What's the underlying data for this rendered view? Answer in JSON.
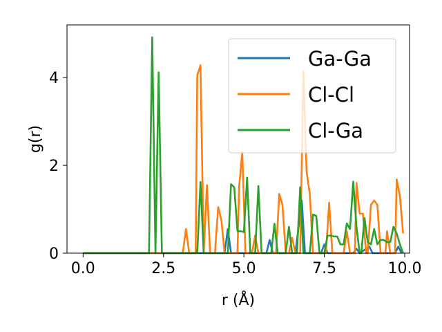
{
  "chart_data": {
    "type": "line",
    "xlabel": "r (Å)",
    "ylabel": "g(r)",
    "xlim": [
      -0.5,
      10.15
    ],
    "ylim": [
      0,
      5.2
    ],
    "xticks": [
      0.0,
      2.5,
      5.0,
      7.5,
      10.0
    ],
    "xtick_labels": [
      "0.0",
      "2.5",
      "5.0",
      "7.5",
      "10.0"
    ],
    "yticks": [
      0,
      2,
      4
    ],
    "ytick_labels": [
      "0",
      "2",
      "4"
    ],
    "grid": false,
    "legend_position": "top-right",
    "series": [
      {
        "name": "Ga-Ga",
        "color": "#1f77b4",
        "points": [
          [
            0,
            0
          ],
          [
            4.4,
            0
          ],
          [
            4.5,
            0.55
          ],
          [
            4.6,
            0
          ],
          [
            5.7,
            0
          ],
          [
            5.8,
            0.3
          ],
          [
            5.9,
            0
          ],
          [
            6.6,
            0
          ],
          [
            6.8,
            1.2
          ],
          [
            6.9,
            0
          ],
          [
            7.4,
            0
          ],
          [
            7.5,
            0.2
          ],
          [
            7.6,
            0
          ],
          [
            8.4,
            0
          ],
          [
            8.5,
            0.1
          ],
          [
            8.6,
            0
          ],
          [
            8.8,
            0.1
          ],
          [
            8.9,
            0.15
          ],
          [
            9.0,
            0
          ],
          [
            9.7,
            0
          ],
          [
            9.8,
            0.15
          ],
          [
            9.9,
            0
          ]
        ]
      },
      {
        "name": "Cl-Cl",
        "color": "#ff7f0e",
        "points": [
          [
            0,
            0
          ],
          [
            3.1,
            0
          ],
          [
            3.2,
            0.55
          ],
          [
            3.3,
            0
          ],
          [
            3.5,
            0
          ],
          [
            3.55,
            4.05
          ],
          [
            3.65,
            4.28
          ],
          [
            3.75,
            0
          ],
          [
            3.85,
            1.55
          ],
          [
            3.95,
            0
          ],
          [
            4.1,
            0
          ],
          [
            4.2,
            1.05
          ],
          [
            4.3,
            0.75
          ],
          [
            4.4,
            0
          ],
          [
            4.8,
            0
          ],
          [
            4.85,
            1.5
          ],
          [
            4.95,
            2.3
          ],
          [
            5.05,
            0
          ],
          [
            5.25,
            0
          ],
          [
            5.35,
            0.4
          ],
          [
            5.45,
            0
          ],
          [
            5.9,
            0
          ],
          [
            6.0,
            0
          ],
          [
            6.1,
            1.35
          ],
          [
            6.2,
            1.1
          ],
          [
            6.3,
            0
          ],
          [
            6.4,
            0
          ],
          [
            6.5,
            0.35
          ],
          [
            6.6,
            0
          ],
          [
            6.75,
            0
          ],
          [
            6.85,
            4.15
          ],
          [
            6.95,
            1.85
          ],
          [
            7.05,
            1.35
          ],
          [
            7.15,
            0
          ],
          [
            7.35,
            0
          ],
          [
            7.45,
            0
          ],
          [
            7.55,
            0
          ],
          [
            7.65,
            1.15
          ],
          [
            7.75,
            0
          ],
          [
            8.1,
            0
          ],
          [
            8.2,
            0.5
          ],
          [
            8.3,
            0
          ],
          [
            8.45,
            0
          ],
          [
            8.5,
            1.6
          ],
          [
            8.6,
            0.9
          ],
          [
            8.7,
            0.9
          ],
          [
            8.8,
            0
          ],
          [
            8.85,
            0
          ],
          [
            8.95,
            1.1
          ],
          [
            9.05,
            1.2
          ],
          [
            9.15,
            1.1
          ],
          [
            9.25,
            0
          ],
          [
            9.4,
            0
          ],
          [
            9.45,
            0.5
          ],
          [
            9.55,
            0
          ],
          [
            9.7,
            0
          ],
          [
            9.75,
            1.68
          ],
          [
            9.85,
            1.3
          ],
          [
            9.95,
            0.45
          ]
        ]
      },
      {
        "name": "Cl-Ga",
        "color": "#2ca02c",
        "points": [
          [
            0,
            0
          ],
          [
            2.05,
            0
          ],
          [
            2.15,
            4.92
          ],
          [
            2.25,
            0
          ],
          [
            2.35,
            4.12
          ],
          [
            2.45,
            0
          ],
          [
            3.55,
            0
          ],
          [
            3.65,
            1.62
          ],
          [
            3.75,
            0
          ],
          [
            4.5,
            0
          ],
          [
            4.6,
            1.57
          ],
          [
            4.7,
            1.5
          ],
          [
            4.8,
            0.5
          ],
          [
            4.9,
            0.5
          ],
          [
            5.0,
            0.48
          ],
          [
            5.1,
            1.72
          ],
          [
            5.2,
            0
          ],
          [
            5.35,
            0
          ],
          [
            5.45,
            1.53
          ],
          [
            5.55,
            0
          ],
          [
            5.85,
            0
          ],
          [
            5.95,
            0.67
          ],
          [
            6.05,
            0
          ],
          [
            6.3,
            0
          ],
          [
            6.4,
            0.6
          ],
          [
            6.5,
            0
          ],
          [
            6.65,
            0
          ],
          [
            6.75,
            1.5
          ],
          [
            6.85,
            0
          ],
          [
            7.05,
            0
          ],
          [
            7.15,
            0.88
          ],
          [
            7.25,
            0.85
          ],
          [
            7.35,
            0
          ],
          [
            7.5,
            0
          ],
          [
            7.6,
            0.4
          ],
          [
            7.7,
            0.4
          ],
          [
            7.8,
            0.38
          ],
          [
            7.9,
            0.38
          ],
          [
            8.0,
            0.2
          ],
          [
            8.1,
            0.2
          ],
          [
            8.2,
            0.68
          ],
          [
            8.3,
            0.55
          ],
          [
            8.4,
            1.63
          ],
          [
            8.5,
            0.6
          ],
          [
            8.6,
            0
          ],
          [
            8.65,
            0
          ],
          [
            8.75,
            0.8
          ],
          [
            8.85,
            0.25
          ],
          [
            8.95,
            0.2
          ],
          [
            9.05,
            0.55
          ],
          [
            9.15,
            0.2
          ],
          [
            9.25,
            0.3
          ],
          [
            9.35,
            0.3
          ],
          [
            9.45,
            0.25
          ],
          [
            9.55,
            0.25
          ],
          [
            9.65,
            0.6
          ],
          [
            9.75,
            0.45
          ],
          [
            9.85,
            0.2
          ],
          [
            9.95,
            0
          ]
        ]
      }
    ]
  }
}
